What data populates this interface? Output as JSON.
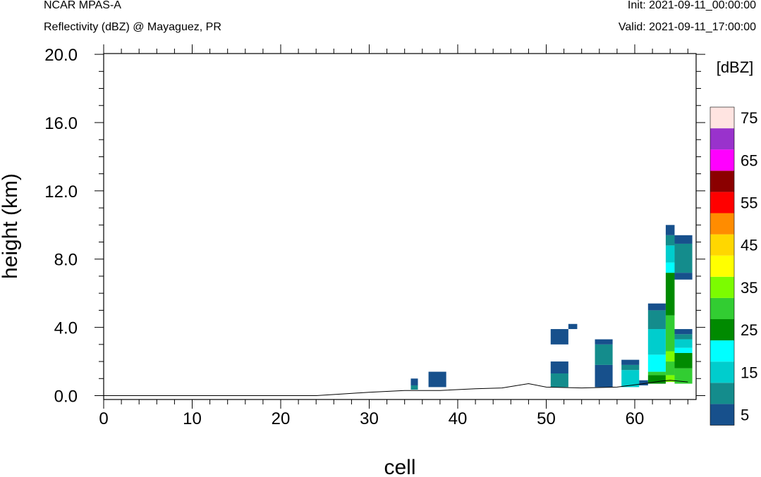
{
  "header": {
    "left_line1": "NCAR MPAS-A",
    "left_line2": "Reflectivity (dBZ) @ Mayaguez, PR",
    "right_line1": "Init: 2021-09-11_00:00:00",
    "right_line2": "Valid: 2021-09-11_17:00:00"
  },
  "chart_data": {
    "type": "heatmap",
    "title": "Reflectivity (dBZ) @ Mayaguez, PR",
    "xlabel": "cell",
    "ylabel": "height (km)",
    "xlim": [
      0,
      67
    ],
    "ylim": [
      -0.3,
      20.0
    ],
    "x_ticks": [
      0,
      10,
      20,
      30,
      40,
      50,
      60
    ],
    "x_tick_labels": [
      "0",
      "10",
      "20",
      "30",
      "40",
      "50",
      "60"
    ],
    "y_ticks": [
      0,
      4,
      8,
      12,
      16,
      20
    ],
    "y_tick_labels": [
      "0.0",
      "4.0",
      "8.0",
      "12.0",
      "16.0",
      "20.0"
    ],
    "colorbar": {
      "title": "[dBZ]",
      "levels": [
        5,
        10,
        15,
        20,
        25,
        30,
        35,
        40,
        45,
        50,
        55,
        60,
        65,
        70,
        75
      ],
      "labels": [
        "5",
        "15",
        "25",
        "35",
        "45",
        "55",
        "65",
        "75"
      ],
      "colors": [
        "#17508c",
        "#148c8c",
        "#00cdcd",
        "#00ffff",
        "#008a00",
        "#32cd32",
        "#7cfc00",
        "#ffff00",
        "#ffd700",
        "#ff8c00",
        "#ff0000",
        "#8b0000",
        "#ff00ff",
        "#9932cc",
        "#ffe4e1"
      ]
    },
    "terrain": [
      [
        0,
        0.0
      ],
      [
        24,
        0.0
      ],
      [
        27,
        0.1
      ],
      [
        30,
        0.2
      ],
      [
        34,
        0.3
      ],
      [
        38,
        0.3
      ],
      [
        42,
        0.4
      ],
      [
        45,
        0.45
      ],
      [
        48,
        0.7
      ],
      [
        50,
        0.5
      ],
      [
        54,
        0.45
      ],
      [
        58,
        0.5
      ],
      [
        61,
        0.7
      ],
      [
        63,
        0.85
      ],
      [
        64,
        0.9
      ],
      [
        66,
        0.8
      ]
    ],
    "cells": [
      {
        "x": [
          34.7,
          35.5
        ],
        "y": [
          0.35,
          0.6
        ],
        "c": "#148c8c"
      },
      {
        "x": [
          34.7,
          35.5
        ],
        "y": [
          0.6,
          1.0
        ],
        "c": "#17508c"
      },
      {
        "x": [
          36.7,
          38.7
        ],
        "y": [
          0.5,
          1.4
        ],
        "c": "#17508c"
      },
      {
        "x": [
          50.5,
          52.5
        ],
        "y": [
          0.5,
          1.3
        ],
        "c": "#148c8c"
      },
      {
        "x": [
          50.5,
          52.5
        ],
        "y": [
          1.3,
          2.0
        ],
        "c": "#17508c"
      },
      {
        "x": [
          50.5,
          52.5
        ],
        "y": [
          3.0,
          3.9
        ],
        "c": "#17508c"
      },
      {
        "x": [
          52.5,
          53.5
        ],
        "y": [
          3.9,
          4.2
        ],
        "c": "#17508c"
      },
      {
        "x": [
          55.5,
          57.5
        ],
        "y": [
          0.5,
          1.8
        ],
        "c": "#17508c"
      },
      {
        "x": [
          55.5,
          57.5
        ],
        "y": [
          1.8,
          3.0
        ],
        "c": "#148c8c"
      },
      {
        "x": [
          55.5,
          57.5
        ],
        "y": [
          3.0,
          3.3
        ],
        "c": "#17508c"
      },
      {
        "x": [
          58.5,
          60.5
        ],
        "y": [
          0.5,
          1.5
        ],
        "c": "#00cdcd"
      },
      {
        "x": [
          58.5,
          60.5
        ],
        "y": [
          1.5,
          1.8
        ],
        "c": "#148c8c"
      },
      {
        "x": [
          58.5,
          60.5
        ],
        "y": [
          1.8,
          2.1
        ],
        "c": "#17508c"
      },
      {
        "x": [
          60.5,
          61.5
        ],
        "y": [
          0.6,
          0.9
        ],
        "c": "#17508c"
      },
      {
        "x": [
          61.5,
          63.5
        ],
        "y": [
          0.7,
          1.2
        ],
        "c": "#008a00"
      },
      {
        "x": [
          61.5,
          63.5
        ],
        "y": [
          1.2,
          1.4
        ],
        "c": "#32cd32"
      },
      {
        "x": [
          61.5,
          63.5
        ],
        "y": [
          1.4,
          2.4
        ],
        "c": "#00ffff"
      },
      {
        "x": [
          61.5,
          63.5
        ],
        "y": [
          2.4,
          3.9
        ],
        "c": "#00cdcd"
      },
      {
        "x": [
          61.5,
          63.5
        ],
        "y": [
          3.9,
          5.0
        ],
        "c": "#148c8c"
      },
      {
        "x": [
          61.5,
          63.5
        ],
        "y": [
          5.0,
          5.4
        ],
        "c": "#17508c"
      },
      {
        "x": [
          63.5,
          64.5
        ],
        "y": [
          0.8,
          1.2
        ],
        "c": "#7cfc00"
      },
      {
        "x": [
          63.5,
          64.5
        ],
        "y": [
          1.2,
          2.0
        ],
        "c": "#32cd32"
      },
      {
        "x": [
          63.5,
          64.5
        ],
        "y": [
          2.0,
          2.6
        ],
        "c": "#7cfc00"
      },
      {
        "x": [
          63.5,
          64.5
        ],
        "y": [
          2.6,
          4.7
        ],
        "c": "#32cd32"
      },
      {
        "x": [
          63.5,
          64.5
        ],
        "y": [
          4.7,
          7.2
        ],
        "c": "#008a00"
      },
      {
        "x": [
          63.5,
          64.5
        ],
        "y": [
          7.2,
          7.8
        ],
        "c": "#00ffff"
      },
      {
        "x": [
          63.5,
          64.5
        ],
        "y": [
          7.8,
          8.8
        ],
        "c": "#00cdcd"
      },
      {
        "x": [
          63.5,
          64.5
        ],
        "y": [
          8.8,
          9.4
        ],
        "c": "#148c8c"
      },
      {
        "x": [
          63.5,
          64.5
        ],
        "y": [
          9.4,
          10.0
        ],
        "c": "#17508c"
      },
      {
        "x": [
          64.5,
          66.5
        ],
        "y": [
          0.7,
          1.6
        ],
        "c": "#32cd32"
      },
      {
        "x": [
          64.5,
          66.5
        ],
        "y": [
          1.6,
          2.5
        ],
        "c": "#008a00"
      },
      {
        "x": [
          64.5,
          66.5
        ],
        "y": [
          2.5,
          2.8
        ],
        "c": "#00ffff"
      },
      {
        "x": [
          64.5,
          66.5
        ],
        "y": [
          2.8,
          3.3
        ],
        "c": "#00cdcd"
      },
      {
        "x": [
          64.5,
          66.5
        ],
        "y": [
          3.3,
          3.6
        ],
        "c": "#148c8c"
      },
      {
        "x": [
          64.5,
          66.5
        ],
        "y": [
          3.6,
          3.9
        ],
        "c": "#17508c"
      },
      {
        "x": [
          64.5,
          66.5
        ],
        "y": [
          6.8,
          7.2
        ],
        "c": "#17508c"
      },
      {
        "x": [
          64.5,
          66.5
        ],
        "y": [
          7.2,
          8.9
        ],
        "c": "#148c8c"
      },
      {
        "x": [
          64.5,
          66.5
        ],
        "y": [
          8.9,
          9.4
        ],
        "c": "#17508c"
      }
    ]
  }
}
